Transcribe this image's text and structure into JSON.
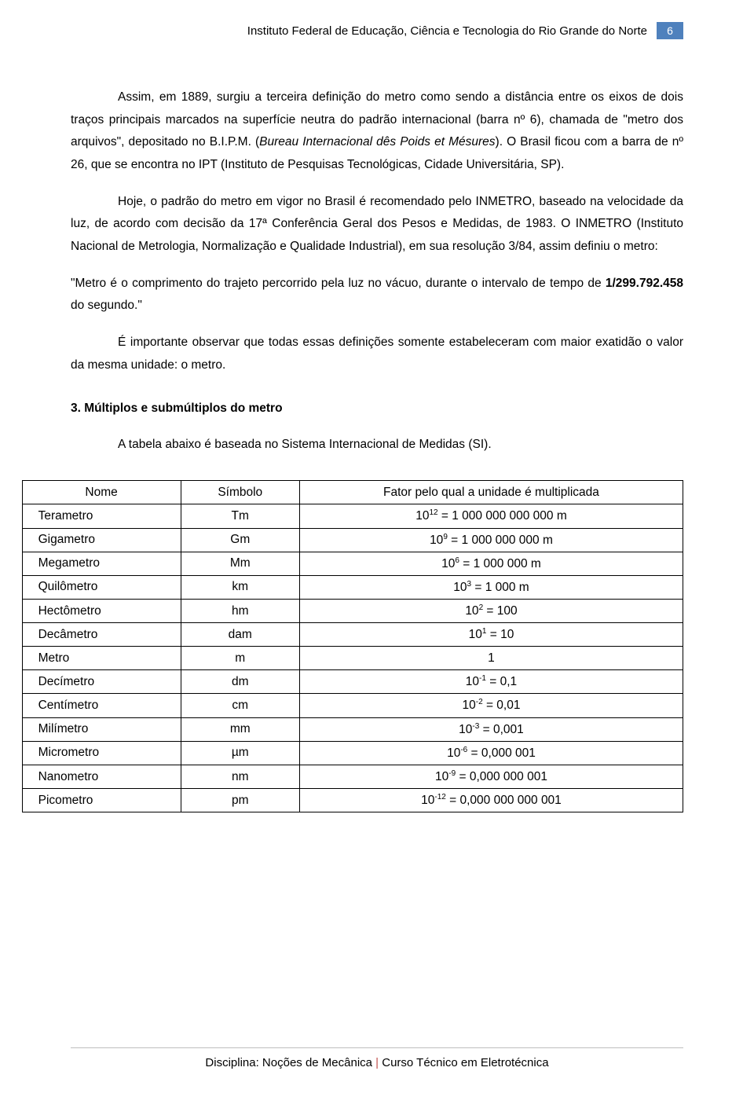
{
  "header": {
    "title": "Instituto Federal de Educação, Ciência e Tecnologia do Rio Grande do Norte",
    "page_number": "6"
  },
  "paragraphs": {
    "p1_a": "Assim, em 1889, surgiu a terceira definição do metro como sendo a distância entre os eixos de dois traços principais marcados na superfície neutra do padrão internacional (barra nº 6), chamada de \"metro dos arquivos\", depositado no B.I.P.M. (",
    "p1_italic": "Bureau Internacional dês Poids et Mésures",
    "p1_b": ").   O Brasil ficou com a barra de nº 26, que se encontra no IPT (Instituto de Pesquisas Tecnológicas, Cidade Universitária, SP).",
    "p2": "Hoje, o padrão do metro em vigor no Brasil é recomendado pelo INMETRO, baseado na velocidade da luz, de acordo com decisão da 17ª Conferência Geral dos Pesos e Medidas, de 1983. O INMETRO (Instituto Nacional de Metrologia, Normalização e Qualidade Industrial), em sua resolução 3/84, assim definiu o metro:",
    "quote_a": "\"Metro é o comprimento do trajeto percorrido pela luz no vácuo, durante o intervalo de tempo de ",
    "quote_bold": "1/299.792.458",
    "quote_b": " do segundo.\"",
    "p3": "É importante observar que todas essas definições somente estabeleceram com maior exatidão o valor da mesma unidade: o metro."
  },
  "section": {
    "heading": "3.   Múltiplos e submúltiplos do metro",
    "intro": "A tabela abaixo é baseada no Sistema Internacional de Medidas (SI)."
  },
  "table": {
    "headers": {
      "name": "Nome",
      "symbol": "Símbolo",
      "factor": "Fator pelo qual a unidade é multiplicada"
    },
    "rows": [
      {
        "name": "Terametro",
        "symbol": "Tm",
        "exp": "12",
        "eq": " = 1 000 000 000 000 m"
      },
      {
        "name": "Gigametro",
        "symbol": "Gm",
        "exp": "9",
        "eq": " = 1 000 000 000 m"
      },
      {
        "name": "Megametro",
        "symbol": "Mm",
        "exp": "6",
        "eq": " = 1 000 000 m"
      },
      {
        "name": "Quilômetro",
        "symbol": "km",
        "exp": "3",
        "eq": " = 1 000 m"
      },
      {
        "name": "Hectômetro",
        "symbol": "hm",
        "exp": "2",
        "eq": " = 100"
      },
      {
        "name": "Decâmetro",
        "symbol": "dam",
        "exp": "1",
        "eq": " = 10"
      },
      {
        "name": "Metro",
        "symbol": "m",
        "exp": "",
        "eq": "1"
      },
      {
        "name": "Decímetro",
        "symbol": "dm",
        "exp": "-1",
        "eq": " = 0,1"
      },
      {
        "name": "Centímetro",
        "symbol": "cm",
        "exp": "-2",
        "eq": " = 0,01"
      },
      {
        "name": "Milímetro",
        "symbol": "mm",
        "exp": "-3",
        "eq": " = 0,001"
      },
      {
        "name": "Micrometro",
        "symbol": "µm",
        "exp": "-6",
        "eq": " = 0,000 001"
      },
      {
        "name": "Nanometro",
        "symbol": "nm",
        "exp": "-9",
        "eq": " = 0,000 000 001"
      },
      {
        "name": "Picometro",
        "symbol": "pm",
        "exp": "-12",
        "eq": " = 0,000 000 000 001"
      }
    ]
  },
  "footer": {
    "left": "Disciplina: Noções de Mecânica",
    "sep": " | ",
    "right": "Curso Técnico em Eletrotécnica"
  }
}
